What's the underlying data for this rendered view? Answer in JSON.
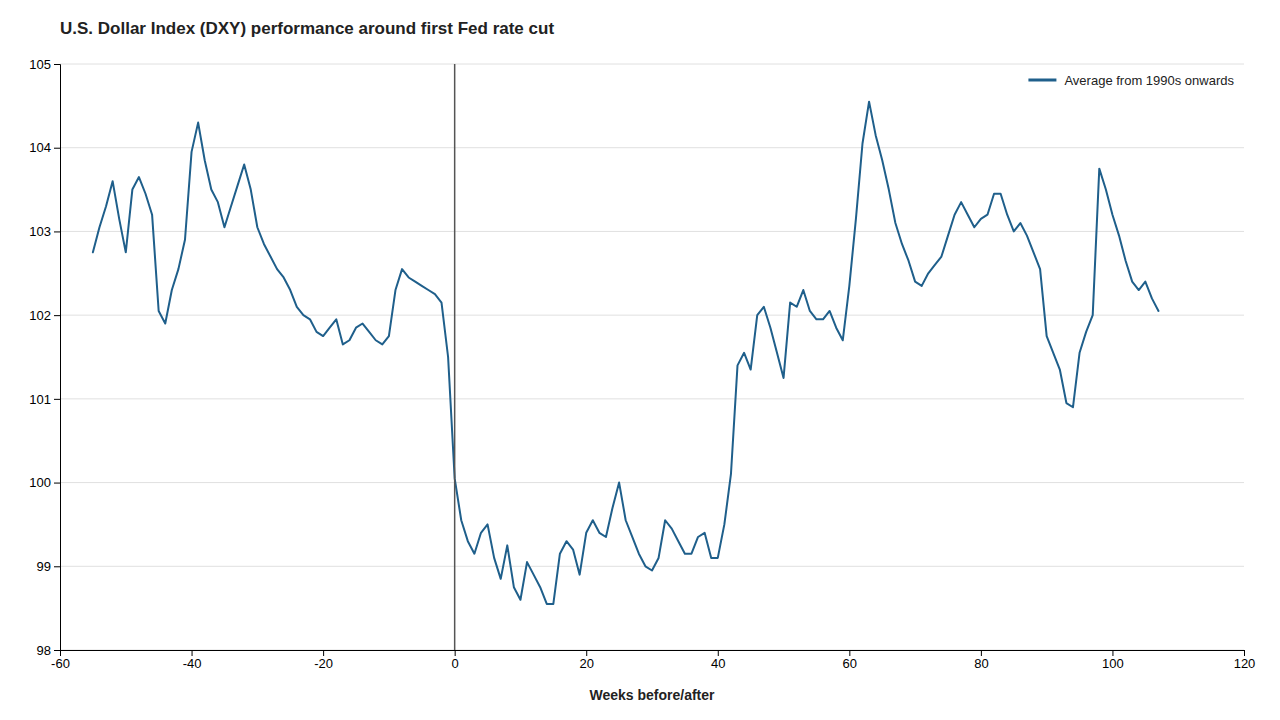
{
  "chart_data": {
    "type": "line",
    "title": "U.S. Dollar Index (DXY) performance around first Fed rate cut",
    "xlabel": "Weeks before/after",
    "x": [
      -55,
      -54,
      -53,
      -52,
      -51,
      -50,
      -49,
      -48,
      -47,
      -46,
      -45,
      -44,
      -43,
      -42,
      -41,
      -40,
      -39,
      -38,
      -37,
      -36,
      -35,
      -34,
      -33,
      -32,
      -31,
      -30,
      -29,
      -28,
      -27,
      -26,
      -25,
      -24,
      -23,
      -22,
      -21,
      -20,
      -19,
      -18,
      -17,
      -16,
      -15,
      -14,
      -13,
      -12,
      -11,
      -10,
      -9,
      -8,
      -7,
      -6,
      -5,
      -4,
      -3,
      -2,
      -1,
      0,
      1,
      2,
      3,
      4,
      5,
      6,
      7,
      8,
      9,
      10,
      11,
      12,
      13,
      14,
      15,
      16,
      17,
      18,
      19,
      20,
      21,
      22,
      23,
      24,
      25,
      26,
      27,
      28,
      29,
      30,
      31,
      32,
      33,
      34,
      35,
      36,
      37,
      38,
      39,
      40,
      41,
      42,
      43,
      44,
      45,
      46,
      47,
      48,
      49,
      50,
      51,
      52,
      53,
      54,
      55,
      56,
      57,
      58,
      59,
      60,
      61,
      62,
      63,
      64,
      65,
      66,
      67,
      68,
      69,
      70,
      71,
      72,
      73,
      74,
      75,
      76,
      77,
      78,
      79,
      80,
      81,
      82,
      83,
      84,
      85,
      86,
      87,
      88,
      89,
      90,
      91,
      92,
      93,
      94,
      95,
      96,
      97,
      98,
      99,
      100,
      101,
      102,
      103,
      104,
      105,
      106,
      107
    ],
    "series": [
      {
        "name": "Average from 1990s onwards",
        "color": "#1f5f8b",
        "values": [
          102.75,
          103.05,
          103.3,
          103.6,
          103.15,
          102.75,
          103.5,
          103.65,
          103.45,
          103.2,
          102.05,
          101.9,
          102.3,
          102.55,
          102.9,
          103.95,
          104.3,
          103.85,
          103.5,
          103.35,
          103.05,
          103.3,
          103.55,
          103.8,
          103.5,
          103.05,
          102.85,
          102.7,
          102.55,
          102.45,
          102.3,
          102.1,
          102.0,
          101.95,
          101.8,
          101.75,
          101.85,
          101.95,
          101.65,
          101.7,
          101.85,
          101.9,
          101.8,
          101.7,
          101.65,
          101.75,
          102.3,
          102.55,
          102.45,
          102.4,
          102.35,
          102.3,
          102.25,
          102.15,
          101.5,
          100.05,
          99.55,
          99.3,
          99.15,
          99.4,
          99.5,
          99.1,
          98.85,
          99.25,
          98.75,
          98.6,
          99.05,
          98.9,
          98.75,
          98.55,
          98.55,
          99.15,
          99.3,
          99.2,
          98.9,
          99.4,
          99.55,
          99.4,
          99.35,
          99.7,
          100.0,
          99.55,
          99.35,
          99.15,
          99.0,
          98.95,
          99.1,
          99.55,
          99.45,
          99.3,
          99.15,
          99.15,
          99.35,
          99.4,
          99.1,
          99.1,
          99.5,
          100.1,
          101.4,
          101.55,
          101.35,
          102.0,
          102.1,
          101.85,
          101.55,
          101.25,
          102.15,
          102.1,
          102.3,
          102.05,
          101.95,
          101.95,
          102.05,
          101.85,
          101.7,
          102.35,
          103.15,
          104.05,
          104.55,
          104.15,
          103.85,
          103.5,
          103.1,
          102.85,
          102.65,
          102.4,
          102.35,
          102.5,
          102.6,
          102.7,
          102.95,
          103.2,
          103.35,
          103.2,
          103.05,
          103.15,
          103.2,
          103.45,
          103.45,
          103.2,
          103.0,
          103.1,
          102.95,
          102.75,
          102.55,
          101.75,
          101.55,
          101.35,
          100.95,
          100.9,
          101.55,
          101.8,
          102.0,
          103.75,
          103.5,
          103.2,
          102.95,
          102.65,
          102.4,
          102.3,
          102.4,
          102.2,
          102.05
        ]
      }
    ],
    "vline_x": 0,
    "xlim": [
      -60,
      120
    ],
    "ylim": [
      98,
      105
    ],
    "xticks": [
      -60,
      -40,
      -20,
      0,
      20,
      40,
      60,
      80,
      100,
      120
    ],
    "yticks": [
      98,
      99,
      100,
      101,
      102,
      103,
      104,
      105
    ],
    "grid": true,
    "legend": "upper right"
  }
}
